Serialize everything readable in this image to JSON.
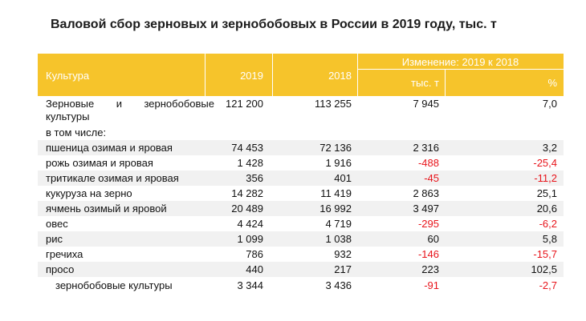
{
  "title": "Валовой сбор зерновых и зернобобовых в России в 2019 году, тыс. т",
  "header": {
    "culture": "Культура",
    "y2019": "2019",
    "y2018": "2018",
    "change": "Изменение: 2019 к 2018",
    "abs_unit": "тыс. т",
    "pct_unit": "%"
  },
  "rows": [
    {
      "name": "Зерновые и зернобобовые культуры",
      "v2019": "121 200",
      "v2018": "113 255",
      "abs": "7 945",
      "pct": "7,0",
      "neg": false
    },
    {
      "name": "в том числе:",
      "v2019": "",
      "v2018": "",
      "abs": "",
      "pct": "",
      "neg": false
    },
    {
      "name": "пшеница озимая и яровая",
      "v2019": "74 453",
      "v2018": "72 136",
      "abs": "2 316",
      "pct": "3,2",
      "neg": false
    },
    {
      "name": "рожь озимая и яровая",
      "v2019": "1 428",
      "v2018": "1 916",
      "abs": "-488",
      "pct": "-25,4",
      "neg": true
    },
    {
      "name": "тритикале озимая и яровая",
      "v2019": "356",
      "v2018": "401",
      "abs": "-45",
      "pct": "-11,2",
      "neg": true
    },
    {
      "name": "кукуруза на зерно",
      "v2019": "14 282",
      "v2018": "11 419",
      "abs": "2 863",
      "pct": "25,1",
      "neg": false
    },
    {
      "name": "ячмень озимый и яровой",
      "v2019": "20 489",
      "v2018": "16 992",
      "abs": "3 497",
      "pct": "20,6",
      "neg": false
    },
    {
      "name": "овес",
      "v2019": "4 424",
      "v2018": "4 719",
      "abs": "-295",
      "pct": "-6,2",
      "neg": true
    },
    {
      "name": "рис",
      "v2019": "1 099",
      "v2018": "1 038",
      "abs": "60",
      "pct": "5,8",
      "neg": false
    },
    {
      "name": "гречиха",
      "v2019": "786",
      "v2018": "932",
      "abs": "-146",
      "pct": "-15,7",
      "neg": true
    },
    {
      "name": "просо",
      "v2019": "440",
      "v2018": "217",
      "abs": "223",
      "pct": "102,5",
      "neg": false
    },
    {
      "name": "зернобобовые культуры",
      "v2019": "3 344",
      "v2018": "3 436",
      "abs": "-91",
      "pct": "-2,7",
      "neg": true
    }
  ],
  "colors": {
    "header_bg": "#f6c42b",
    "negative": "#e8141b",
    "shade": "#f1f1f1"
  }
}
